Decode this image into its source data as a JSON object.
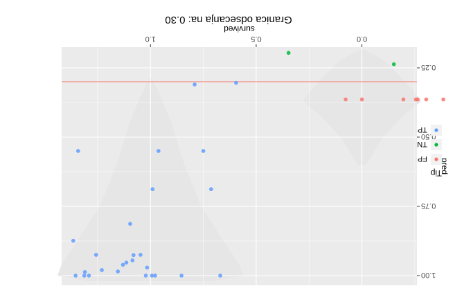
{
  "chart_data": {
    "type": "scatter",
    "caption": "Granica odsecanja na: 0.30",
    "xlabel": "survived",
    "ylabel": "pred",
    "orientation": "rotated 180 degrees",
    "x_range": [
      -0.26,
      1.42
    ],
    "y_range": [
      0.175,
      1.035
    ],
    "x_ticks": [
      0.0,
      0.5,
      1.0
    ],
    "x_tick_labels": [
      "0.0",
      "0.5",
      "1.0"
    ],
    "y_ticks": [
      0.25,
      0.5,
      0.75,
      1.0
    ],
    "y_tick_labels": [
      "0.25",
      "0.50",
      "0.75",
      "1.00"
    ],
    "threshold": 0.3,
    "threshold_color": "#F8766D",
    "grid": true,
    "panel_background": "#EBEBEB",
    "legend": {
      "title": "Tip",
      "placement": "right",
      "entries": [
        {
          "label": "FP",
          "color": "#F8766D"
        },
        {
          "label": "TN",
          "color": "#00BA38"
        },
        {
          "label": "TP",
          "color": "#619CFF"
        }
      ]
    },
    "series": [
      {
        "name": "FP",
        "color": "#F8766D",
        "points": [
          {
            "x": 0.077,
            "y": 0.364
          },
          {
            "x": 0.0,
            "y": 0.364
          },
          {
            "x": -0.196,
            "y": 0.364
          },
          {
            "x": -0.255,
            "y": 0.364
          },
          {
            "x": -0.264,
            "y": 0.364
          },
          {
            "x": -0.304,
            "y": 0.364
          },
          {
            "x": -0.385,
            "y": 0.364
          }
        ]
      },
      {
        "name": "TN",
        "color": "#00BA38",
        "points": [
          {
            "x": 0.347,
            "y": 0.196
          },
          {
            "x": -0.151,
            "y": 0.237
          }
        ]
      },
      {
        "name": "TP",
        "color": "#619CFF",
        "points": [
          {
            "x": 0.791,
            "y": 0.31
          },
          {
            "x": 0.595,
            "y": 0.304
          },
          {
            "x": 0.75,
            "y": 0.55
          },
          {
            "x": 0.962,
            "y": 0.55
          },
          {
            "x": 1.342,
            "y": 0.55
          },
          {
            "x": 0.713,
            "y": 0.688
          },
          {
            "x": 0.99,
            "y": 0.688
          },
          {
            "x": 1.096,
            "y": 0.813
          },
          {
            "x": 1.365,
            "y": 0.874
          },
          {
            "x": 1.08,
            "y": 0.926
          },
          {
            "x": 1.047,
            "y": 0.925
          },
          {
            "x": 1.016,
            "y": 0.971
          },
          {
            "x": 1.085,
            "y": 0.945
          },
          {
            "x": 1.257,
            "y": 0.925
          },
          {
            "x": 1.114,
            "y": 0.953
          },
          {
            "x": 1.13,
            "y": 0.961
          },
          {
            "x": 1.154,
            "y": 0.985
          },
          {
            "x": 1.23,
            "y": 0.98
          },
          {
            "x": 1.31,
            "y": 0.987
          },
          {
            "x": 1.354,
            "y": 1.0
          },
          {
            "x": 1.313,
            "y": 1.0
          },
          {
            "x": 1.291,
            "y": 1.0
          },
          {
            "x": 0.993,
            "y": 1.0
          },
          {
            "x": 0.978,
            "y": 1.0
          },
          {
            "x": 0.853,
            "y": 1.0
          },
          {
            "x": 0.67,
            "y": 1.0
          },
          {
            "x": 1.022,
            "y": 1.0
          }
        ]
      }
    ]
  }
}
